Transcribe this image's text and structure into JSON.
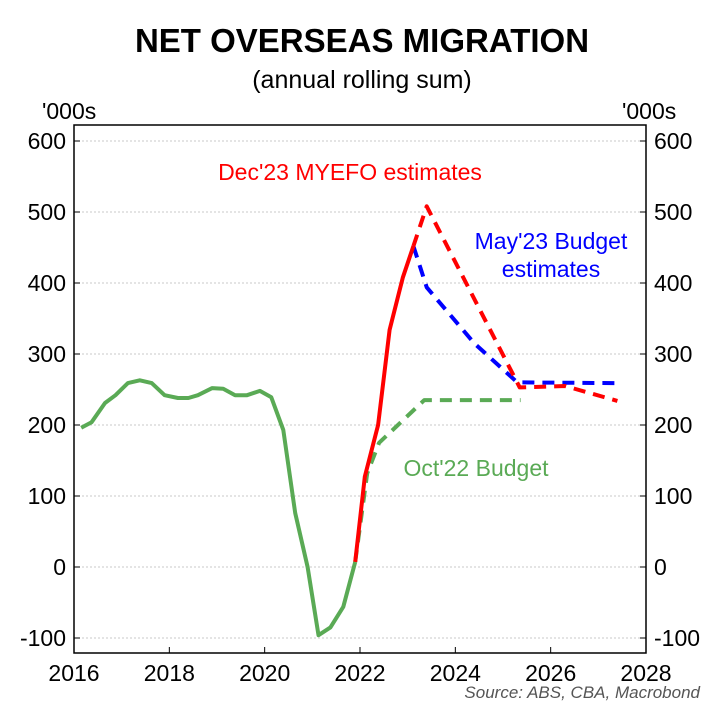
{
  "chart_data": {
    "type": "line",
    "title": "NET OVERSEAS MIGRATION",
    "subtitle": "(annual rolling sum)",
    "ylabel_left": "'000s",
    "ylabel_right": "'000s",
    "xlim": [
      2016,
      2028
    ],
    "ylim": [
      -120,
      650
    ],
    "yticks": [
      -100,
      0,
      100,
      200,
      300,
      400,
      500,
      600
    ],
    "ytick_labels": [
      "-100",
      "0",
      "100",
      "200",
      "300",
      "400",
      "500",
      "600"
    ],
    "xticks": [
      2016,
      2018,
      2020,
      2022,
      2024,
      2026,
      2028
    ],
    "xtick_labels": [
      "2016",
      "2018",
      "2020",
      "2022",
      "2024",
      "2026",
      "2028"
    ],
    "grid": "horizontal dotted",
    "source": "Source: ABS, CBA, Macrobond",
    "series": [
      {
        "name": "Oct'22 Budget",
        "label": "Oct'22 Budget",
        "color": "#5aaa55",
        "style": "dashed",
        "x": [
          2021.9,
          2022.15,
          2022.4,
          2023.35,
          2025.37
        ],
        "y": [
          7,
          132,
          175,
          235,
          235
        ]
      },
      {
        "name": "May'23 Budget estimates",
        "label_line1": "May'23 Budget",
        "label_line2": "estimates",
        "color": "#0000ff",
        "style": "dashed",
        "x": [
          2023.12,
          2023.4,
          2024.4,
          2025.3,
          2027.4
        ],
        "y": [
          452,
          394,
          315,
          260,
          259
        ]
      },
      {
        "name": "Dec'23 MYEFO estimates",
        "label": "Dec'23 MYEFO estimates",
        "color": "#ff0000",
        "style": "dashed",
        "x": [
          2023.12,
          2023.4,
          2025.35,
          2026.3,
          2027.4
        ],
        "y": [
          452,
          508,
          253,
          255,
          234
        ]
      },
      {
        "name": "Actual (MYEFO)",
        "color": "#ff0000",
        "style": "solid",
        "x": [
          2021.9,
          2022.1,
          2022.38,
          2022.62,
          2022.9,
          2023.12
        ],
        "y": [
          7,
          127,
          200,
          334,
          408,
          452
        ]
      },
      {
        "name": "Actual",
        "color": "#5aaa55",
        "style": "solid",
        "x": [
          2016.15,
          2016.37,
          2016.65,
          2016.87,
          2017.13,
          2017.38,
          2017.63,
          2017.9,
          2018.18,
          2018.4,
          2018.6,
          2018.9,
          2019.13,
          2019.38,
          2019.63,
          2019.9,
          2020.14,
          2020.39,
          2020.64,
          2020.9,
          2021.13,
          2021.38,
          2021.65,
          2021.9
        ],
        "y": [
          196,
          204,
          231,
          242,
          259,
          263,
          259,
          242,
          238,
          238,
          242,
          252,
          251,
          242,
          242,
          248,
          239,
          193,
          76,
          0,
          -96,
          -85,
          -56,
          7
        ]
      }
    ]
  }
}
